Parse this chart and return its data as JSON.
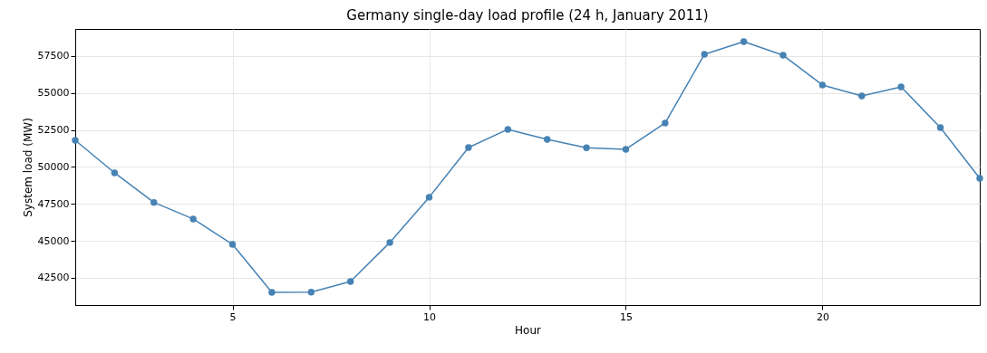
{
  "chart_data": {
    "type": "line",
    "title": "Germany single-day load profile (24 h, January 2011)",
    "xlabel": "Hour",
    "ylabel": "System load (MW)",
    "x": [
      1,
      2,
      3,
      4,
      5,
      6,
      7,
      8,
      9,
      10,
      11,
      12,
      13,
      14,
      15,
      16,
      17,
      18,
      19,
      20,
      21,
      22,
      23,
      24
    ],
    "series": [
      {
        "color": "#4682b4",
        "values": [
          51800,
          49600,
          47600,
          46480,
          44760,
          41520,
          41530,
          42250,
          44890,
          47950,
          51310,
          52540,
          51860,
          51300,
          51190,
          52970,
          57620,
          58470,
          57550,
          55540,
          54800,
          55410,
          52660,
          49230
        ]
      }
    ],
    "xlim": [
      1,
      24
    ],
    "xticks": [
      5,
      10,
      15,
      20
    ],
    "ylim": [
      40660,
      59330
    ],
    "yticks": [
      42500,
      45000,
      47500,
      50000,
      52500,
      55000,
      57500
    ],
    "grid": true,
    "marker": "circle",
    "line_style": "solid",
    "legend": false
  }
}
